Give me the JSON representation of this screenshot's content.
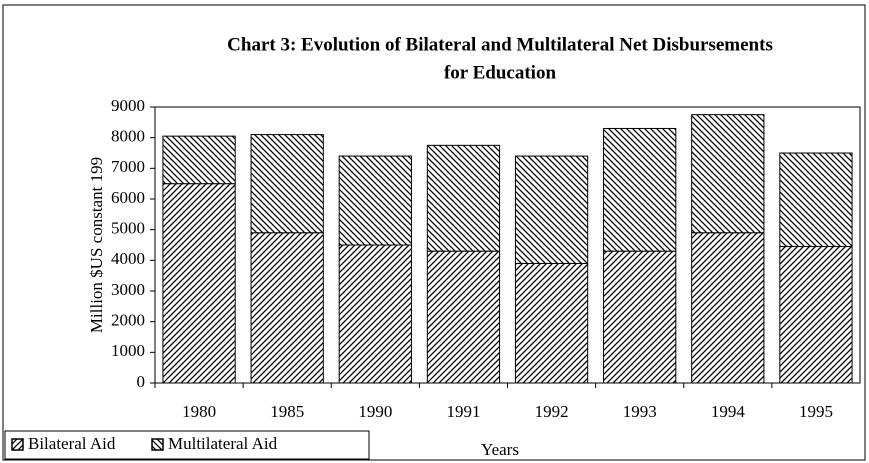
{
  "chart_data": {
    "type": "stacked_bar",
    "title": [
      "Chart 3: Evolution of Bilateral and Multilateral Net Disbursements",
      "for Education"
    ],
    "y_label": "Million $US constant 199",
    "x_label": "Years",
    "categories": [
      "1980",
      "1985",
      "1990",
      "1991",
      "1992",
      "1993",
      "1994",
      "1995"
    ],
    "series": [
      {
        "name": "Bilateral Aid",
        "color": "#000000",
        "pattern": "forward-diagonal",
        "values": [
          6500,
          4900,
          4500,
          4300,
          3900,
          4300,
          4900,
          4450
        ]
      },
      {
        "name": "Multilateral Aid",
        "color": "#000000",
        "pattern": "backward-diagonal",
        "values": [
          1550,
          3200,
          2900,
          3450,
          3500,
          4000,
          3850,
          3050
        ]
      }
    ],
    "ylim": [
      0,
      9000
    ],
    "yticks": [
      0,
      1000,
      2000,
      3000,
      4000,
      5000,
      6000,
      7000,
      8000,
      9000
    ],
    "grid": false,
    "legend": "bottom-left"
  }
}
